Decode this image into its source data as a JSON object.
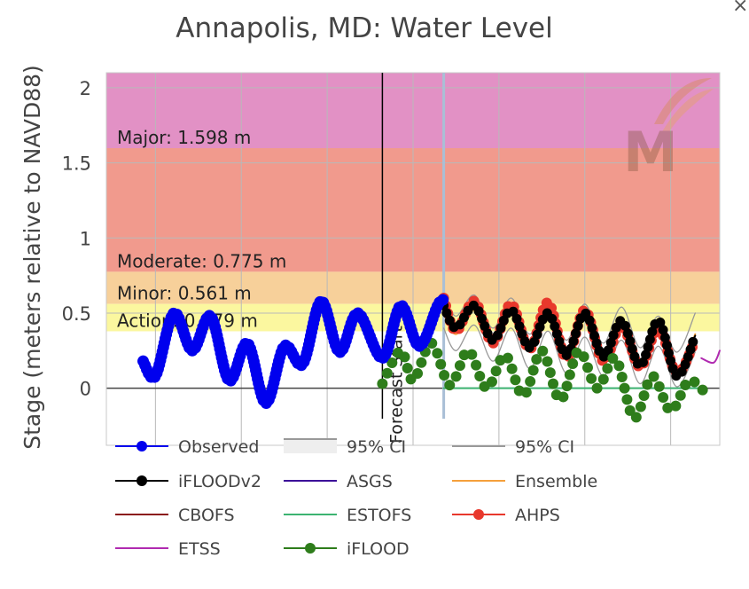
{
  "window": {
    "close_glyph": "×"
  },
  "chart_data": {
    "type": "line",
    "title": "Annapolis, MD: Water Level",
    "xlabel": "",
    "ylabel": "Stage (meters relative to NAVD88)",
    "x_domain": [
      0,
      100
    ],
    "ylim": [
      -0.38,
      2.1
    ],
    "yticks": [
      0,
      0.5,
      1,
      1.5,
      2
    ],
    "ytick_labels": [
      "0",
      "0.5",
      "1",
      "1.5",
      "2"
    ],
    "grid": true,
    "legend_position": "bottom",
    "colors": {
      "major_band": "#e291c5",
      "moderate_band": "#f19a8d",
      "minor_band": "#f7d09a",
      "action_band": "#fbf79f",
      "observed": "#0000ee",
      "iflood2": "#000000",
      "asgs": "#3c0f99",
      "ensemble": "#f5a03c",
      "cbofs": "#8b1a1a",
      "estofs": "#3cb371",
      "ahps": "#e8382c",
      "etss": "#b02ab0",
      "iflood": "#2e7d1b",
      "ci": "#999999",
      "ci_band": "#eeeeee",
      "forecast_line": "#000000",
      "now_line": "#a9bfd6"
    },
    "thresholds": [
      {
        "label": "Major: 1.598 m",
        "value": 1.598
      },
      {
        "label": "Moderate: 0.775 m",
        "value": 0.775
      },
      {
        "label": "Minor: 0.561 m",
        "value": 0.561
      },
      {
        "label": "Action: 0.379 m",
        "value": 0.379
      }
    ],
    "forecast_start": {
      "label": "Forecast Start",
      "x": 45
    },
    "now_marker_x": 55,
    "series": [
      {
        "key": "observed",
        "name": "Observed",
        "x": [
          6,
          8,
          11,
          14,
          17,
          20,
          23,
          26,
          29,
          32,
          35,
          38,
          41,
          45,
          48,
          51,
          54,
          55
        ],
        "y": [
          0.18,
          0.08,
          0.5,
          0.25,
          0.48,
          0.05,
          0.3,
          -0.1,
          0.28,
          0.16,
          0.58,
          0.24,
          0.5,
          0.2,
          0.55,
          0.28,
          0.55,
          0.59
        ]
      },
      {
        "key": "ci_upper",
        "name": "95% CI",
        "x": [
          55,
          57,
          60,
          63,
          66,
          69,
          72,
          75,
          78,
          81,
          84,
          87,
          90,
          93,
          96
        ],
        "y": [
          0.62,
          0.48,
          0.62,
          0.4,
          0.6,
          0.36,
          0.58,
          0.32,
          0.56,
          0.3,
          0.54,
          0.27,
          0.48,
          0.24,
          0.5
        ]
      },
      {
        "key": "ci_lower",
        "name": "95% CI",
        "x": [
          55,
          57,
          60,
          63,
          66,
          69,
          72,
          75,
          78,
          81,
          84,
          87,
          90,
          93,
          96
        ],
        "y": [
          0.4,
          0.25,
          0.42,
          0.18,
          0.4,
          0.13,
          0.38,
          0.1,
          0.34,
          0.08,
          0.32,
          0.03,
          0.28,
          0.01,
          0.24
        ]
      },
      {
        "key": "iflood2",
        "name": "iFLOODv2",
        "x": [
          55,
          57,
          60,
          63,
          66,
          69,
          72,
          75,
          78,
          81,
          84,
          87,
          90,
          93,
          96
        ],
        "y": [
          0.55,
          0.4,
          0.55,
          0.32,
          0.52,
          0.27,
          0.5,
          0.22,
          0.5,
          0.21,
          0.45,
          0.15,
          0.45,
          0.08,
          0.35
        ]
      },
      {
        "key": "ahps",
        "name": "AHPS",
        "x": [
          55,
          57,
          60,
          63,
          66,
          69,
          72,
          75,
          78,
          81,
          84,
          87,
          90,
          93,
          96
        ],
        "y": [
          0.6,
          0.38,
          0.58,
          0.3,
          0.56,
          0.26,
          0.57,
          0.2,
          0.52,
          0.18,
          0.42,
          0.14,
          0.4,
          0.1,
          0.32
        ]
      },
      {
        "key": "ensemble",
        "name": "Ensemble",
        "x": [
          55,
          57,
          60,
          63,
          66,
          69,
          72,
          75,
          78,
          81,
          84,
          87,
          90,
          93,
          96
        ],
        "y": [
          0.5,
          0.36,
          0.52,
          0.3,
          0.5,
          0.26,
          0.5,
          0.2,
          0.48,
          0.18,
          0.44,
          0.14,
          0.42,
          0.1,
          0.36
        ]
      },
      {
        "key": "iflood",
        "name": "iFLOOD",
        "x": [
          45,
          48,
          50,
          53,
          56,
          59,
          62,
          65,
          68,
          71,
          74,
          77,
          80,
          83,
          86,
          89,
          92,
          95,
          98
        ],
        "y": [
          0.03,
          0.25,
          0.05,
          0.3,
          0.02,
          0.25,
          0,
          0.22,
          -0.05,
          0.25,
          -0.08,
          0.25,
          0,
          0.2,
          -0.2,
          0.08,
          -0.15,
          0.05,
          -0.05
        ]
      },
      {
        "key": "estofs",
        "name": "ESTOFS",
        "x": [
          55,
          97
        ],
        "y": [
          0,
          0
        ]
      },
      {
        "key": "etss",
        "name": "ETSS",
        "x": [
          97,
          99,
          100
        ],
        "y": [
          0.2,
          0.17,
          0.25
        ]
      },
      {
        "key": "asgs",
        "name": "ASGS",
        "x": [],
        "y": []
      },
      {
        "key": "cbofs",
        "name": "CBOFS",
        "x": [],
        "y": []
      }
    ],
    "legend": [
      {
        "key": "observed",
        "name": "Observed",
        "style": "line-marker"
      },
      {
        "key": "ci_band",
        "name": "95% CI",
        "style": "band"
      },
      {
        "key": "ci",
        "name": "95% CI",
        "style": "line"
      },
      {
        "key": "iflood2",
        "name": "iFLOODv2",
        "style": "line-marker"
      },
      {
        "key": "asgs",
        "name": "ASGS",
        "style": "line"
      },
      {
        "key": "ensemble",
        "name": "Ensemble",
        "style": "line"
      },
      {
        "key": "cbofs",
        "name": "CBOFS",
        "style": "line"
      },
      {
        "key": "estofs",
        "name": "ESTOFS",
        "style": "line"
      },
      {
        "key": "ahps",
        "name": "AHPS",
        "style": "line-marker"
      },
      {
        "key": "etss",
        "name": "ETSS",
        "style": "line"
      },
      {
        "key": "iflood",
        "name": "iFLOOD",
        "style": "line-marker"
      }
    ]
  }
}
